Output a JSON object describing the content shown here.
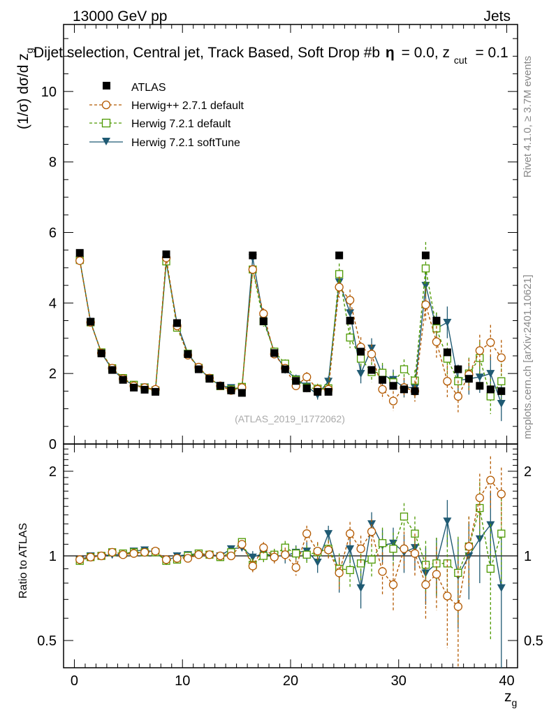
{
  "header": {
    "energy": "13000 GeV pp",
    "category": "Jets",
    "selection": "Dijet selection, Central jet, Track Based, Soft Drop #b",
    "selection_tail": "= 0.0, z",
    "zcut_sub": "cut",
    "zcut_val": "= 0.1"
  },
  "side_labels": {
    "rivet": "Rivet 4.1.0, ≥ 3.7M events",
    "mcplots": "mcplots.cern.ch [arXiv:2401.10621]"
  },
  "watermark": "(ATLAS_2019_I1772062)",
  "axis_text": {
    "y_main_prefix": "(1/σ) dσ/d z",
    "y_main_sub": "g",
    "y_ratio": "Ratio to ATLAS",
    "x_main": "z",
    "x_sub": "g"
  },
  "colors": {
    "atlas": "#000000",
    "herwigpp": "#b35900",
    "herwig_default": "#4d9900",
    "herwig_soft": "#1f5a73"
  },
  "chart_data": [
    {
      "type": "scatter",
      "title": "Dijet selection, Central jet, Track Based, Soft Drop",
      "xlabel": "z_g",
      "ylabel": "(1/σ) dσ/d z_g",
      "xlim": [
        -1,
        41
      ],
      "ylim": [
        0,
        11.9
      ],
      "yticks": [
        0,
        2,
        4,
        6,
        8,
        10
      ],
      "xticks": [
        0,
        10,
        20,
        30,
        40
      ],
      "legend_position": "top-left",
      "x": [
        0.5,
        1.5,
        2.5,
        3.5,
        4.5,
        5.5,
        6.5,
        7.5,
        8.5,
        9.5,
        10.5,
        11.5,
        12.5,
        13.5,
        14.5,
        15.5,
        16.5,
        17.5,
        18.5,
        19.5,
        20.5,
        21.5,
        22.5,
        23.5,
        24.5,
        25.5,
        26.5,
        27.5,
        28.5,
        29.5,
        30.5,
        31.5,
        32.5,
        33.5,
        34.5,
        35.5,
        36.5,
        37.5,
        38.5,
        39.5
      ],
      "series": [
        {
          "name": "ATLAS",
          "marker": "filled-square",
          "values": [
            5.42,
            3.47,
            2.57,
            2.1,
            1.82,
            1.6,
            1.54,
            1.48,
            5.38,
            3.43,
            2.55,
            2.12,
            1.85,
            1.65,
            1.52,
            1.45,
            5.35,
            3.48,
            2.58,
            2.12,
            1.79,
            1.58,
            1.48,
            1.48,
            5.35,
            3.5,
            2.62,
            2.1,
            1.82,
            1.65,
            1.55,
            1.5,
            5.35,
            3.5,
            2.6,
            2.12,
            1.85,
            1.65,
            1.55,
            1.5
          ],
          "errors": [
            0.05,
            0.04,
            0.03,
            0.03,
            0.02,
            0.02,
            0.02,
            0.02,
            0.05,
            0.04,
            0.03,
            0.03,
            0.03,
            0.02,
            0.02,
            0.02,
            0.05,
            0.04,
            0.03,
            0.03,
            0.03,
            0.03,
            0.03,
            0.03,
            0.06,
            0.05,
            0.04,
            0.04,
            0.04,
            0.04,
            0.04,
            0.04,
            0.07,
            0.06,
            0.06,
            0.06,
            0.06,
            0.06,
            0.06,
            0.06
          ]
        },
        {
          "name": "Herwig++ 2.7.1 default",
          "marker": "open-circle",
          "values": [
            5.2,
            3.45,
            2.58,
            2.15,
            1.85,
            1.65,
            1.6,
            1.55,
            5.28,
            3.35,
            2.52,
            2.18,
            1.87,
            1.65,
            1.52,
            1.6,
            4.95,
            3.7,
            2.55,
            2.15,
            1.65,
            1.9,
            1.55,
            1.55,
            4.45,
            4.08,
            2.75,
            2.55,
            1.55,
            1.22,
            1.6,
            1.5,
            3.95,
            2.9,
            1.78,
            1.35,
            1.97,
            2.65,
            2.88,
            2.45
          ],
          "errors": [
            0.06,
            0.06,
            0.05,
            0.05,
            0.05,
            0.05,
            0.05,
            0.05,
            0.08,
            0.08,
            0.07,
            0.07,
            0.07,
            0.07,
            0.07,
            0.07,
            0.12,
            0.15,
            0.12,
            0.12,
            0.12,
            0.14,
            0.14,
            0.14,
            0.3,
            0.3,
            0.28,
            0.28,
            0.28,
            0.28,
            0.28,
            0.3,
            0.45,
            0.45,
            0.45,
            0.45,
            0.45,
            0.45,
            0.5,
            0.5
          ]
        },
        {
          "name": "Herwig 7.2.1 default",
          "marker": "open-square",
          "values": [
            5.22,
            3.45,
            2.6,
            2.15,
            1.87,
            1.68,
            1.6,
            1.52,
            5.18,
            3.3,
            2.56,
            2.16,
            1.87,
            1.64,
            1.55,
            1.62,
            4.95,
            3.48,
            2.62,
            2.28,
            1.82,
            1.6,
            1.57,
            1.58,
            4.82,
            3.02,
            2.42,
            2.04,
            2.02,
            1.75,
            2.12,
            1.8,
            4.98,
            3.28,
            2.42,
            1.78,
            2.0,
            2.44,
            1.35,
            1.78
          ],
          "errors": [
            0.06,
            0.06,
            0.05,
            0.05,
            0.05,
            0.05,
            0.05,
            0.05,
            0.08,
            0.08,
            0.07,
            0.07,
            0.07,
            0.07,
            0.07,
            0.07,
            0.12,
            0.15,
            0.12,
            0.12,
            0.12,
            0.14,
            0.14,
            0.14,
            0.3,
            0.3,
            0.28,
            0.28,
            0.28,
            0.28,
            0.28,
            0.3,
            0.75,
            0.45,
            0.45,
            0.45,
            0.45,
            0.45,
            0.5,
            0.5
          ]
        },
        {
          "name": "Herwig 7.2.1 softTune",
          "marker": "filled-triangle-down",
          "values": [
            5.22,
            3.47,
            2.58,
            2.12,
            1.84,
            1.67,
            1.62,
            1.52,
            5.15,
            3.42,
            2.57,
            2.16,
            1.86,
            1.66,
            1.6,
            1.55,
            5.28,
            3.55,
            2.6,
            2.12,
            1.85,
            1.64,
            1.4,
            1.78,
            4.6,
            3.72,
            2.0,
            2.72,
            1.96,
            1.83,
            1.6,
            1.6,
            4.5,
            3.28,
            3.45,
            1.8,
            1.85,
            1.9,
            2.0,
            1.15
          ],
          "errors": [
            0.06,
            0.06,
            0.05,
            0.05,
            0.05,
            0.05,
            0.05,
            0.05,
            0.08,
            0.08,
            0.07,
            0.07,
            0.07,
            0.07,
            0.07,
            0.07,
            0.12,
            0.15,
            0.12,
            0.12,
            0.12,
            0.14,
            0.14,
            0.14,
            0.3,
            0.3,
            0.28,
            0.28,
            0.28,
            0.28,
            0.28,
            0.3,
            0.45,
            0.45,
            0.45,
            0.45,
            0.45,
            0.45,
            0.5,
            0.5
          ]
        }
      ]
    },
    {
      "type": "scatter",
      "title": "",
      "xlabel": "z_g",
      "ylabel": "Ratio to ATLAS",
      "xlim": [
        -1,
        41
      ],
      "ylim": [
        0.4,
        2.5
      ],
      "yticks": [
        0.5,
        1,
        2
      ],
      "ytick_labels": [
        "0.5",
        "1",
        "2"
      ],
      "xticks": [
        0,
        10,
        20,
        30,
        40
      ],
      "yscale": "log",
      "reference_line": 1,
      "x": [
        0.5,
        1.5,
        2.5,
        3.5,
        4.5,
        5.5,
        6.5,
        7.5,
        8.5,
        9.5,
        10.5,
        11.5,
        12.5,
        13.5,
        14.5,
        15.5,
        16.5,
        17.5,
        18.5,
        19.5,
        20.5,
        21.5,
        22.5,
        23.5,
        24.5,
        25.5,
        26.5,
        27.5,
        28.5,
        29.5,
        30.5,
        31.5,
        32.5,
        33.5,
        34.5,
        35.5,
        36.5,
        37.5,
        38.5,
        39.5
      ],
      "series": [
        {
          "name": "Herwig++ 2.7.1 default",
          "values": [
            0.97,
            0.99,
            1.0,
            1.03,
            1.01,
            1.02,
            1.03,
            1.04,
            0.97,
            0.98,
            0.98,
            1.01,
            1.01,
            1.0,
            1.0,
            1.1,
            0.92,
            1.07,
            0.99,
            1.01,
            0.91,
            1.2,
            1.04,
            1.05,
            0.87,
            1.2,
            1.06,
            1.22,
            0.88,
            0.79,
            1.06,
            1.02,
            0.79,
            0.86,
            0.72,
            0.66,
            1.08,
            1.61,
            1.86,
            1.66
          ],
          "errors": [
            0.02,
            0.02,
            0.02,
            0.02,
            0.02,
            0.02,
            0.02,
            0.02,
            0.03,
            0.03,
            0.03,
            0.03,
            0.03,
            0.03,
            0.03,
            0.03,
            0.05,
            0.05,
            0.05,
            0.06,
            0.06,
            0.08,
            0.08,
            0.08,
            0.12,
            0.12,
            0.12,
            0.13,
            0.15,
            0.15,
            0.16,
            0.18,
            0.2,
            0.22,
            0.25,
            0.3,
            0.3,
            0.35,
            0.4,
            0.4
          ]
        },
        {
          "name": "Herwig 7.2.1 default",
          "values": [
            0.96,
            0.99,
            1.0,
            1.03,
            1.02,
            1.03,
            1.03,
            1.03,
            0.96,
            0.97,
            1.0,
            1.02,
            1.01,
            0.99,
            1.03,
            1.12,
            0.93,
            1.0,
            1.01,
            1.07,
            1.02,
            1.01,
            1.03,
            1.06,
            0.9,
            0.89,
            0.94,
            0.97,
            1.11,
            1.06,
            1.38,
            1.2,
            0.93,
            0.94,
            0.94,
            0.87,
            1.08,
            1.48,
            0.9,
            1.2
          ],
          "errors": [
            0.02,
            0.02,
            0.02,
            0.02,
            0.02,
            0.02,
            0.02,
            0.02,
            0.03,
            0.03,
            0.03,
            0.03,
            0.03,
            0.03,
            0.03,
            0.03,
            0.05,
            0.05,
            0.05,
            0.06,
            0.06,
            0.08,
            0.08,
            0.08,
            0.12,
            0.12,
            0.12,
            0.13,
            0.15,
            0.15,
            0.16,
            0.18,
            0.2,
            0.22,
            0.25,
            0.3,
            0.3,
            0.35,
            0.4,
            0.4
          ]
        },
        {
          "name": "Herwig 7.2.1 softTune",
          "values": [
            0.97,
            1.0,
            1.0,
            1.01,
            1.01,
            1.04,
            1.05,
            1.03,
            0.96,
            1.0,
            1.01,
            1.02,
            1.01,
            1.0,
            1.06,
            1.07,
            0.99,
            1.02,
            1.0,
            1.0,
            1.03,
            1.04,
            0.95,
            1.2,
            0.86,
            1.06,
            0.77,
            1.3,
            1.09,
            1.11,
            1.03,
            1.07,
            0.87,
            0.94,
            1.33,
            0.85,
            1.0,
            1.15,
            1.29,
            0.77
          ],
          "errors": [
            0.02,
            0.02,
            0.02,
            0.02,
            0.02,
            0.02,
            0.02,
            0.02,
            0.03,
            0.03,
            0.03,
            0.03,
            0.03,
            0.03,
            0.03,
            0.03,
            0.05,
            0.05,
            0.05,
            0.06,
            0.06,
            0.08,
            0.08,
            0.08,
            0.12,
            0.12,
            0.12,
            0.13,
            0.15,
            0.15,
            0.16,
            0.18,
            0.2,
            0.22,
            0.25,
            0.3,
            0.3,
            0.35,
            0.4,
            0.4
          ]
        }
      ]
    }
  ]
}
